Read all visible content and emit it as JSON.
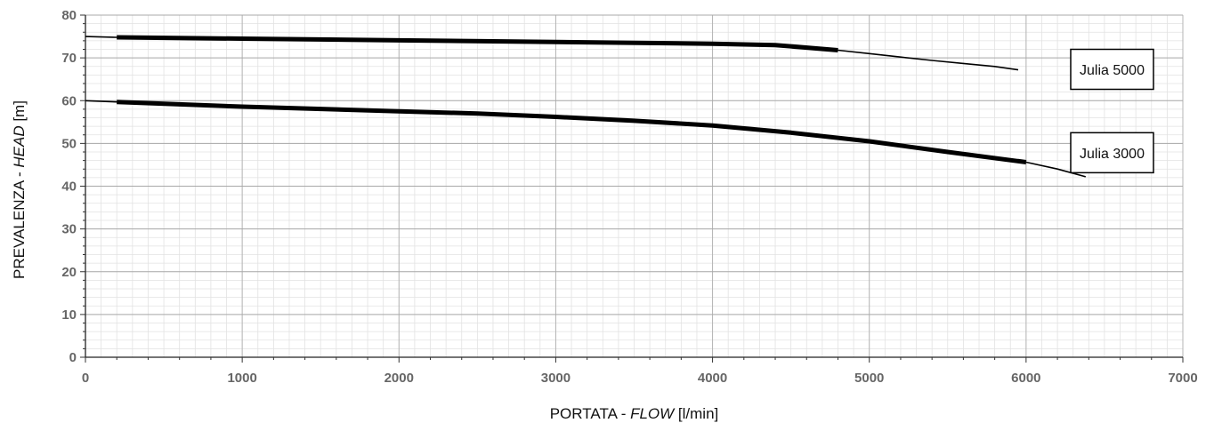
{
  "chart_data": {
    "type": "line",
    "xlabel": "PORTATA - FLOW [l/min]",
    "xlabel_parts": [
      "PORTATA - ",
      "FLOW",
      " [l/min]"
    ],
    "ylabel": "PREVALENZA - HEAD [m]",
    "ylabel_parts": [
      "PREVALENZA - ",
      "HEAD",
      " [m]"
    ],
    "xlim": [
      0,
      7000
    ],
    "ylim": [
      0,
      80
    ],
    "x_ticks": [
      0,
      1000,
      2000,
      3000,
      4000,
      5000,
      6000,
      7000
    ],
    "y_ticks": [
      0,
      10,
      20,
      30,
      40,
      50,
      60,
      70,
      80
    ],
    "x_tick_labels": [
      "0",
      "1000",
      "2000",
      "3000",
      "4000",
      "5000",
      "6000",
      "7000"
    ],
    "y_tick_labels": [
      "0",
      "10",
      "20",
      "30",
      "40",
      "50",
      "60",
      "70",
      "80"
    ],
    "grid": true,
    "series": [
      {
        "name": "Julia 5000",
        "x": [
          0,
          200,
          1000,
          2000,
          3000,
          4000,
          4400,
          4800,
          5000,
          5200,
          5400,
          5600,
          5800,
          5950
        ],
        "y": [
          75,
          74.8,
          74.5,
          74.1,
          73.7,
          73.3,
          73.0,
          71.8,
          71.0,
          70.2,
          69.4,
          68.7,
          68.0,
          67.2
        ],
        "bold_range": [
          200,
          4800
        ],
        "color": "#000000"
      },
      {
        "name": "Julia 3000",
        "x": [
          0,
          200,
          1000,
          2000,
          2500,
          3000,
          3500,
          4000,
          4500,
          5000,
          5500,
          6000,
          6200,
          6380
        ],
        "y": [
          60,
          59.7,
          58.6,
          57.5,
          57.0,
          56.2,
          55.3,
          54.2,
          52.5,
          50.5,
          48.0,
          45.6,
          44.0,
          42.2
        ],
        "bold_range": [
          200,
          6000
        ],
        "color": "#000000"
      }
    ],
    "legend": [
      {
        "label": "Julia 5000",
        "anchor": "Julia 5000"
      },
      {
        "label": "Julia 3000",
        "anchor": "Julia 3000"
      }
    ],
    "legend_placement": "right"
  }
}
